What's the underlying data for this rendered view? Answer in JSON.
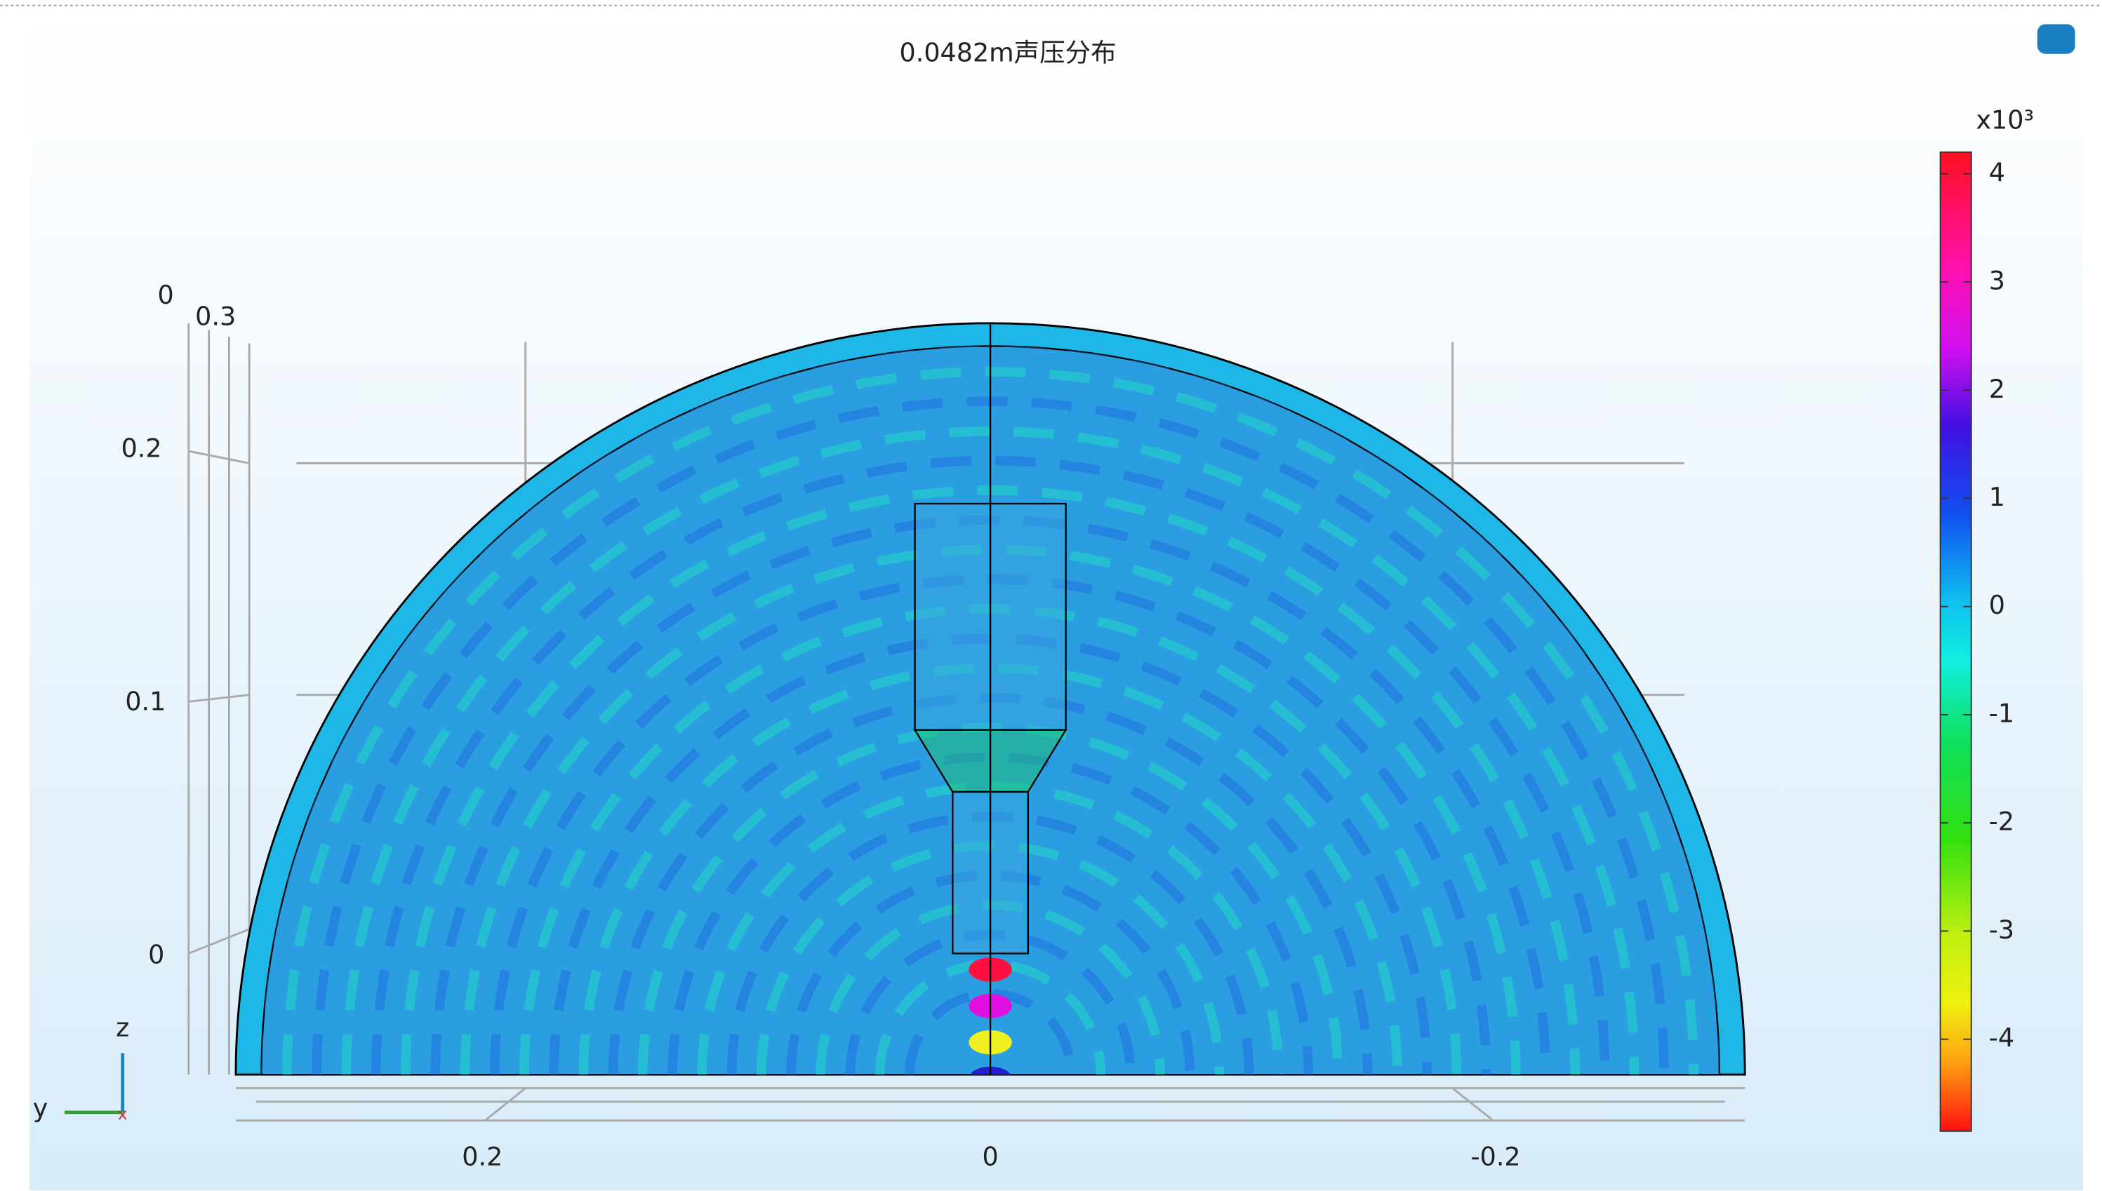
{
  "title": "0.0482m声压分布",
  "colorbar": {
    "multiplier": "x10³",
    "range": [
      -4.85,
      4.2
    ],
    "ticks": [
      4,
      3,
      2,
      1,
      0,
      -1,
      -2,
      -3,
      -4
    ]
  },
  "axes": {
    "z_labels": [
      "0.2",
      "0.1",
      "0"
    ],
    "corner_labels": [
      "0",
      "0.3"
    ],
    "y_labels": [
      "0.2",
      "0",
      "-0.2"
    ]
  },
  "triad": {
    "z": "z",
    "y": "y",
    "x": "x"
  }
}
